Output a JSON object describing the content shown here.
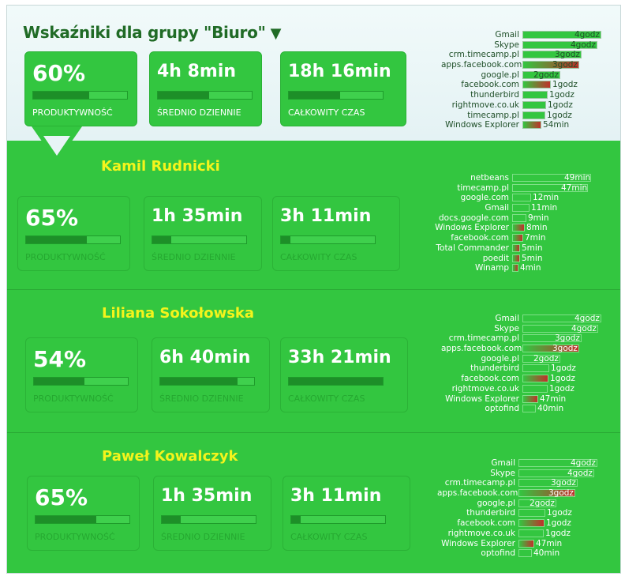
{
  "group": {
    "title": "Wskaźniki dla grupy \"Biuro\"",
    "dropdown_icon": "triangle-down-icon",
    "stats": [
      {
        "value": "60%",
        "label": "PRODUKTYWNOŚĆ",
        "fill": 0.6
      },
      {
        "value": "4h 8min",
        "label": "ŚREDNIO DZIENNIE",
        "fill": 0.55
      },
      {
        "value": "18h 16min",
        "label": "CAŁKOWITY CZAS",
        "fill": 0.55
      }
    ],
    "apps": [
      {
        "name": "Gmail",
        "time": "4godz",
        "fill": 1.0,
        "color": "#33c640"
      },
      {
        "name": "Skype",
        "time": "4godz",
        "fill": 0.95,
        "color": "#33c640"
      },
      {
        "name": "crm.timecamp.pl",
        "time": "3godz",
        "fill": 0.75,
        "color": "#33c640"
      },
      {
        "name": "apps.facebook.com",
        "time": "3godz",
        "fill": 0.72,
        "color": "#c0302a"
      },
      {
        "name": "google.pl",
        "time": "2godz",
        "fill": 0.48,
        "color": "#33c640"
      },
      {
        "name": "facebook.com",
        "time": "1godz",
        "fill": 0.36,
        "color": "#c0302a"
      },
      {
        "name": "thunderbird",
        "time": "1godz",
        "fill": 0.32,
        "color": "#33c640"
      },
      {
        "name": "rightmove.co.uk",
        "time": "1godz",
        "fill": 0.3,
        "color": "#33c640"
      },
      {
        "name": "timecamp.pl",
        "time": "1godz",
        "fill": 0.29,
        "color": "#33c640"
      },
      {
        "name": "Windows Explorer",
        "time": "54min",
        "fill": 0.24,
        "color": "#c0302a"
      }
    ]
  },
  "people": [
    {
      "name": "Kamil Rudnicki",
      "stats": [
        {
          "value": "65%",
          "label": "PRODUKTYWNOŚĆ",
          "fill": 0.65
        },
        {
          "value": "1h 35min",
          "label": "ŚREDNIO DZIENNIE",
          "fill": 0.2
        },
        {
          "value": "3h 11min",
          "label": "CAŁKOWITY CZAS",
          "fill": 0.1
        }
      ],
      "apps": [
        {
          "name": "netbeans",
          "time": "49min",
          "fill": 1.0,
          "color": "#33c640"
        },
        {
          "name": "timecamp.pl",
          "time": "47min",
          "fill": 0.96,
          "color": "#33c640"
        },
        {
          "name": "google.com",
          "time": "12min",
          "fill": 0.24,
          "color": "#33c640"
        },
        {
          "name": "Gmail",
          "time": "11min",
          "fill": 0.22,
          "color": "#33c640"
        },
        {
          "name": "docs.google.com",
          "time": "9min",
          "fill": 0.18,
          "color": "#33c640"
        },
        {
          "name": "Windows Explorer",
          "time": "8min",
          "fill": 0.16,
          "color": "#c0302a"
        },
        {
          "name": "facebook.com",
          "time": "7min",
          "fill": 0.14,
          "color": "#c0302a"
        },
        {
          "name": "Total Commander",
          "time": "5min",
          "fill": 0.1,
          "color": "#c0302a"
        },
        {
          "name": "poedit",
          "time": "5min",
          "fill": 0.1,
          "color": "#c0302a"
        },
        {
          "name": "Winamp",
          "time": "4min",
          "fill": 0.08,
          "color": "#c0302a"
        }
      ]
    },
    {
      "name": "Liliana Sokołowska",
      "stats": [
        {
          "value": "54%",
          "label": "PRODUKTYWNOŚĆ",
          "fill": 0.54
        },
        {
          "value": "6h 40min",
          "label": "ŚREDNIO DZIENNIE",
          "fill": 0.82
        },
        {
          "value": "33h 21min",
          "label": "CAŁKOWITY CZAS",
          "fill": 1.0
        }
      ],
      "apps": [
        {
          "name": "Gmail",
          "time": "4godz",
          "fill": 1.0,
          "color": "#33c640"
        },
        {
          "name": "Skype",
          "time": "4godz",
          "fill": 0.96,
          "color": "#33c640"
        },
        {
          "name": "crm.timecamp.pl",
          "time": "3godz",
          "fill": 0.75,
          "color": "#33c640"
        },
        {
          "name": "apps.facebook.com",
          "time": "3godz",
          "fill": 0.72,
          "color": "#c0302a"
        },
        {
          "name": "google.pl",
          "time": "2godz",
          "fill": 0.48,
          "color": "#33c640"
        },
        {
          "name": "thunderbird",
          "time": "1godz",
          "fill": 0.34,
          "color": "#33c640"
        },
        {
          "name": "facebook.com",
          "time": "1godz",
          "fill": 0.33,
          "color": "#c0302a"
        },
        {
          "name": "rightmove.co.uk",
          "time": "1godz",
          "fill": 0.32,
          "color": "#33c640"
        },
        {
          "name": "Windows Explorer",
          "time": "47min",
          "fill": 0.2,
          "color": "#c0302a"
        },
        {
          "name": "optofind",
          "time": "40min",
          "fill": 0.17,
          "color": "#33c640"
        }
      ]
    },
    {
      "name": "Paweł Kowalczyk",
      "stats": [
        {
          "value": "65%",
          "label": "PRODUKTYWNOŚĆ",
          "fill": 0.65
        },
        {
          "value": "1h 35min",
          "label": "ŚREDNIO DZIENNIE",
          "fill": 0.2
        },
        {
          "value": "3h 11min",
          "label": "CAŁKOWITY CZAS",
          "fill": 0.1
        }
      ],
      "apps": [
        {
          "name": "Gmail",
          "time": "4godz",
          "fill": 1.0,
          "color": "#33c640"
        },
        {
          "name": "Skype",
          "time": "4godz",
          "fill": 0.96,
          "color": "#33c640"
        },
        {
          "name": "crm.timecamp.pl",
          "time": "3godz",
          "fill": 0.75,
          "color": "#33c640"
        },
        {
          "name": "apps.facebook.com",
          "time": "3godz",
          "fill": 0.72,
          "color": "#c0302a"
        },
        {
          "name": "google.pl",
          "time": "2godz",
          "fill": 0.48,
          "color": "#33c640"
        },
        {
          "name": "thunderbird",
          "time": "1godz",
          "fill": 0.34,
          "color": "#33c640"
        },
        {
          "name": "facebook.com",
          "time": "1godz",
          "fill": 0.33,
          "color": "#c0302a"
        },
        {
          "name": "rightmove.co.uk",
          "time": "1godz",
          "fill": 0.32,
          "color": "#33c640"
        },
        {
          "name": "Windows Explorer",
          "time": "47min",
          "fill": 0.2,
          "color": "#c0302a"
        },
        {
          "name": "optofind",
          "time": "40min",
          "fill": 0.17,
          "color": "#33c640"
        }
      ]
    }
  ]
}
